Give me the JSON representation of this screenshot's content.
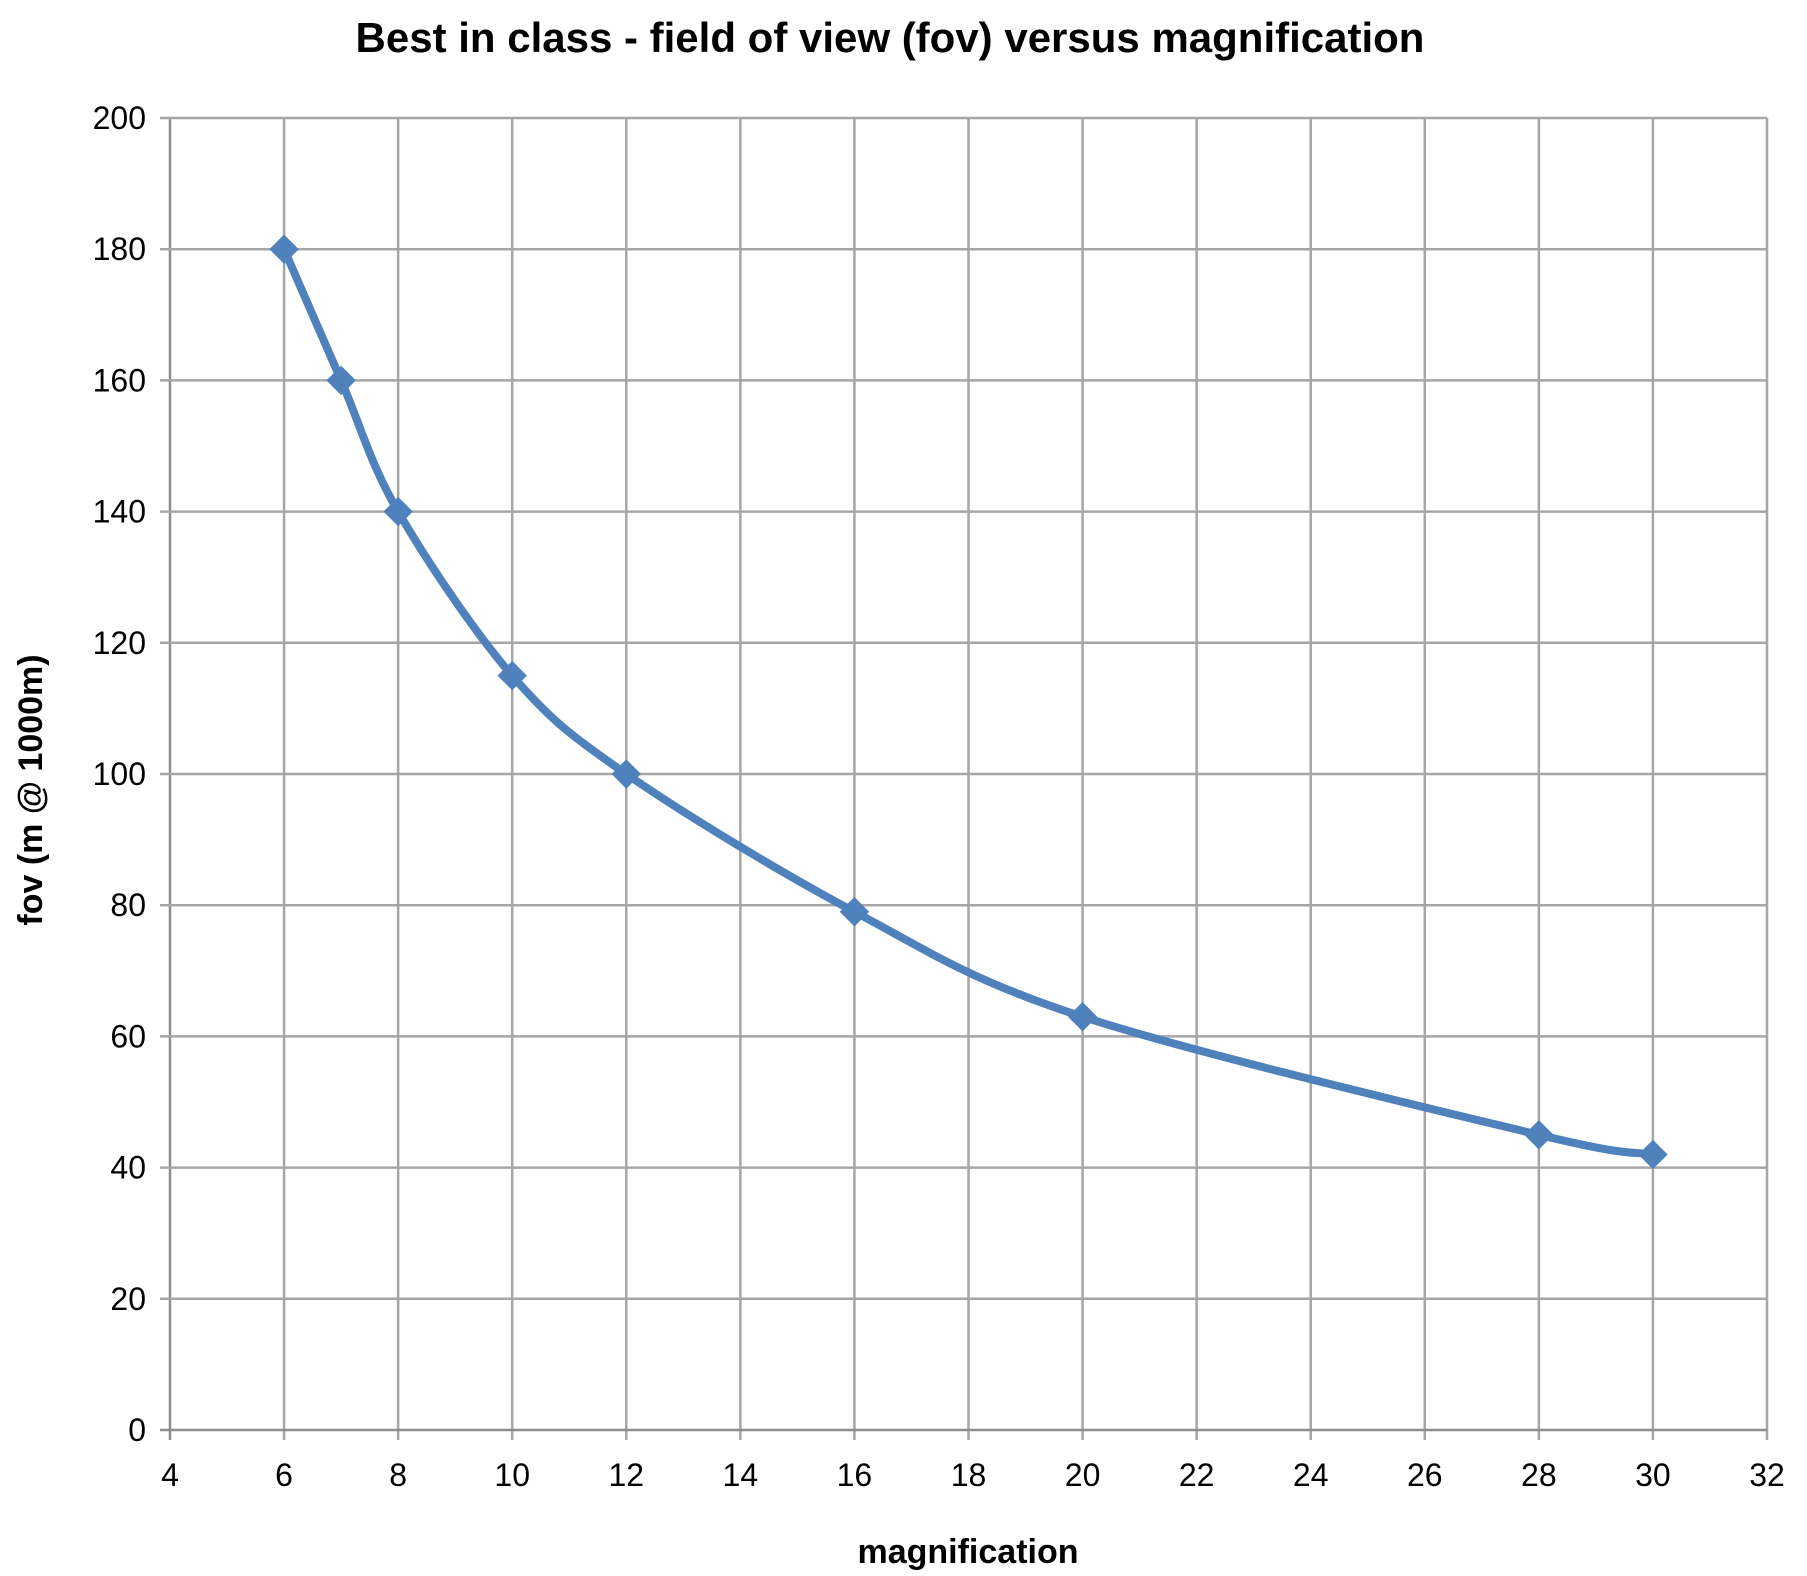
{
  "chart_data": {
    "type": "line",
    "title": "Best in class - field of view (fov) versus magnification",
    "xlabel": "magnification",
    "ylabel": "fov (m @ 1000m)",
    "xlim": [
      4,
      32
    ],
    "ylim": [
      0,
      200
    ],
    "xticks": [
      4,
      6,
      8,
      10,
      12,
      14,
      16,
      18,
      20,
      22,
      24,
      26,
      28,
      30,
      32
    ],
    "yticks": [
      0,
      20,
      40,
      60,
      80,
      100,
      120,
      140,
      160,
      180,
      200
    ],
    "grid": true,
    "legend": "none",
    "series": [
      {
        "color": "#4f81bd",
        "marker": "diamond",
        "smooth": true,
        "points": [
          {
            "x": 6,
            "y": 180
          },
          {
            "x": 7,
            "y": 160
          },
          {
            "x": 8,
            "y": 140
          },
          {
            "x": 10,
            "y": 115
          },
          {
            "x": 12,
            "y": 100
          },
          {
            "x": 16,
            "y": 79
          },
          {
            "x": 20,
            "y": 63
          },
          {
            "x": 28,
            "y": 45
          },
          {
            "x": 30,
            "y": 42
          }
        ]
      }
    ]
  }
}
